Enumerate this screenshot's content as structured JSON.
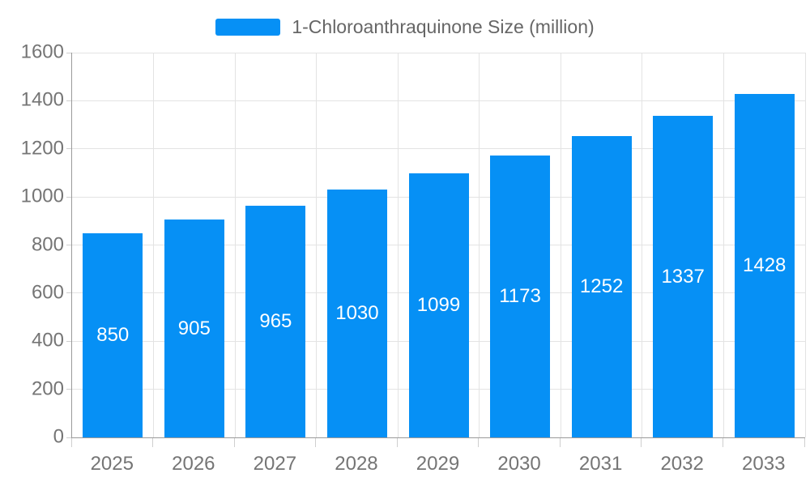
{
  "legend": {
    "label": "1-Chloroanthraquinone Size (million)"
  },
  "chart_data": {
    "type": "bar",
    "title": "1-Chloroanthraquinone Size (million)",
    "categories": [
      "2025",
      "2026",
      "2027",
      "2028",
      "2029",
      "2030",
      "2031",
      "2032",
      "2033"
    ],
    "values": [
      850,
      905,
      965,
      1030,
      1099,
      1173,
      1252,
      1337,
      1428
    ],
    "series": [
      {
        "name": "1-Chloroanthraquinone Size (million)",
        "values": [
          850,
          905,
          965,
          1030,
          1099,
          1173,
          1252,
          1337,
          1428
        ]
      }
    ],
    "xlabel": "",
    "ylabel": "",
    "ylim": [
      0,
      1600
    ],
    "yticks": [
      0,
      200,
      400,
      600,
      800,
      1000,
      1200,
      1400,
      1600
    ],
    "grid": true,
    "legend_position": "top",
    "value_labels": "inside-center"
  },
  "colors": {
    "bar": "#0690f5",
    "value_label": "#ffffff",
    "axis_line": "#9a9a9a",
    "gridline": "#e3e3e3",
    "tick": "#cfcfcf",
    "axis_text": "#757575",
    "legend_text": "#666666",
    "background": "#ffffff"
  }
}
